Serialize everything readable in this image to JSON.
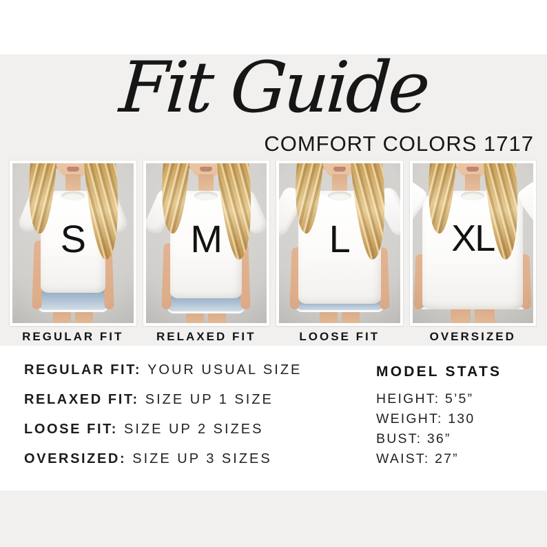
{
  "header": {
    "title": "Fit Guide",
    "subtitle": "COMFORT COLORS 1717"
  },
  "panels": [
    {
      "letter": "S",
      "label": "REGULAR FIT"
    },
    {
      "letter": "M",
      "label": "RELAXED FIT"
    },
    {
      "letter": "L",
      "label": "LOOSE FIT"
    },
    {
      "letter": "XL",
      "label": "OVERSIZED"
    }
  ],
  "fit_guide": [
    {
      "name": "REGULAR FIT:",
      "desc": "YOUR USUAL SIZE"
    },
    {
      "name": "RELAXED FIT:",
      "desc": "SIZE UP 1 SIZE"
    },
    {
      "name": "LOOSE FIT:",
      "desc": "SIZE UP 2 SIZES"
    },
    {
      "name": "OVERSIZED:",
      "desc": "SIZE UP 3 SIZES"
    }
  ],
  "model_stats": {
    "title": "MODEL STATS",
    "lines": [
      "HEIGHT: 5’5”",
      "WEIGHT: 130",
      "BUST: 36”",
      "WAIST: 27”"
    ]
  },
  "colors": {
    "page_band": "#f1f0ee",
    "photo_backdrop": "#d2d0cc",
    "text": "#161616",
    "denim": "#a9bfd2",
    "tee": "#fcfbf9"
  }
}
